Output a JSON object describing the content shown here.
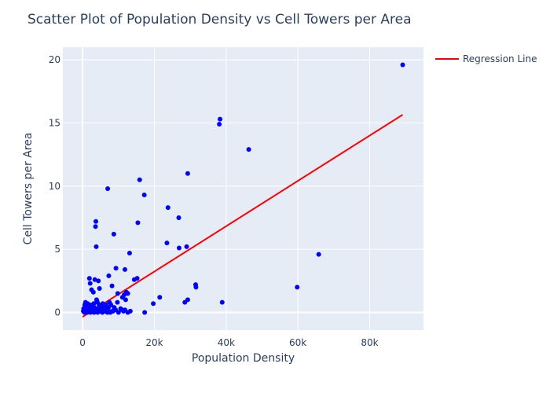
{
  "chart_data": {
    "type": "scatter",
    "title": "Scatter Plot of Population Density vs Cell Towers per Area",
    "xlabel": "Population Density",
    "ylabel": "Cell Towers per Area",
    "xlim": [
      -5500,
      95000
    ],
    "ylim": [
      -1.4,
      21
    ],
    "x_ticks": [
      0,
      20000,
      40000,
      60000,
      80000
    ],
    "x_tick_labels": [
      "0",
      "20k",
      "40k",
      "60k",
      "80k"
    ],
    "y_ticks": [
      0,
      5,
      10,
      15,
      20
    ],
    "y_tick_labels": [
      "0",
      "5",
      "10",
      "15",
      "20"
    ],
    "grid": true,
    "legend_position": "top-right",
    "plot_background": "#e5ecf6",
    "series": [
      {
        "kind": "markers",
        "color": "#0000ff",
        "x": [
          89200,
          38300,
          38100,
          46300,
          65800,
          59800,
          29300,
          15900,
          17200,
          7000,
          23800,
          26800,
          3700,
          3600,
          15400,
          8700,
          23500,
          29000,
          26900,
          3800,
          13100,
          9300,
          11800,
          14400,
          15200,
          1900,
          3400,
          2100,
          7300,
          4400,
          4700,
          8200,
          3000,
          31500,
          31600,
          9800,
          12200,
          12600,
          11600,
          11100,
          21500,
          29300,
          28500,
          12000,
          19700,
          9700,
          38900,
          200,
          400,
          600,
          800,
          1000,
          1200,
          1500,
          1800,
          2000,
          2300,
          2600,
          2900,
          3100,
          3300,
          3600,
          4000,
          4300,
          4600,
          5000,
          5300,
          5600,
          5900,
          6300,
          6700,
          7100,
          7500,
          7900,
          8300,
          8800,
          9200,
          10000,
          10600,
          11000,
          11400,
          11800,
          12600,
          13300,
          500,
          900,
          1300,
          1700,
          2200,
          2700,
          3200,
          3700,
          4200,
          4800,
          5500,
          6200,
          6900,
          7700,
          8500,
          17300,
          700,
          1100,
          1600,
          2400,
          2800,
          3500,
          4100,
          4900,
          5700,
          6500,
          300,
          1400,
          2500,
          3900,
          5200,
          6000,
          7200
        ],
        "y": [
          19.6,
          15.3,
          14.9,
          12.9,
          4.6,
          2.0,
          11.0,
          10.5,
          9.3,
          9.8,
          8.3,
          7.5,
          7.2,
          6.8,
          7.1,
          6.2,
          5.5,
          5.2,
          5.1,
          5.2,
          4.7,
          3.5,
          3.4,
          2.6,
          2.7,
          2.7,
          2.6,
          2.3,
          2.9,
          2.5,
          1.9,
          2.1,
          1.6,
          2.2,
          2.0,
          1.5,
          1.6,
          1.5,
          1.4,
          1.2,
          1.2,
          1.0,
          0.8,
          1.0,
          0.7,
          0.8,
          0.8,
          0.1,
          0.3,
          0.6,
          0.8,
          0.2,
          0.5,
          0.4,
          0.1,
          0.6,
          0.3,
          0.5,
          0.2,
          0.7,
          0.4,
          0.1,
          0.9,
          0.3,
          0.6,
          0.2,
          0.4,
          0.7,
          0.1,
          0.5,
          0.3,
          0.2,
          0.8,
          0.6,
          0.1,
          0.4,
          0.2,
          0.0,
          0.3,
          0.2,
          0.1,
          0.2,
          0.0,
          0.1,
          0.0,
          0.1,
          0.0,
          0.2,
          0.0,
          0.1,
          0.0,
          0.1,
          0.0,
          0.1,
          0.0,
          0.1,
          0.0,
          0.0,
          0.1,
          0.0,
          0.4,
          0.7,
          0.3,
          0.5,
          0.6,
          0.2,
          0.8,
          0.4,
          0.3,
          0.6,
          0.3,
          0.7,
          1.8,
          1.0,
          0.5,
          0.2,
          0.4
        ]
      },
      {
        "kind": "line",
        "name": "Regression Line",
        "color": "#ff0000",
        "x": [
          0,
          89200
        ],
        "y": [
          -0.35,
          15.65
        ]
      }
    ]
  }
}
